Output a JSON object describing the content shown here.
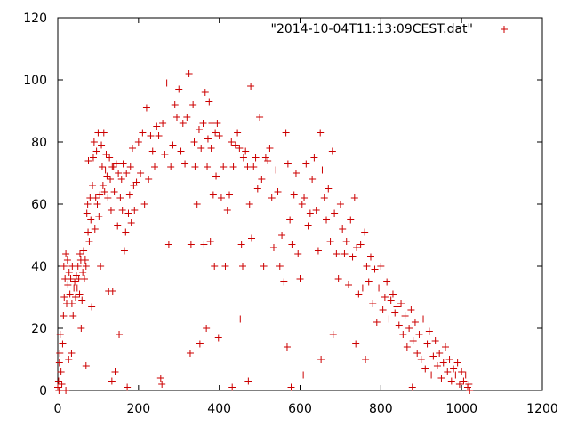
{
  "chart_data": {
    "type": "scatter",
    "title": "",
    "xlabel": "",
    "ylabel": "",
    "xlim": [
      0,
      1200
    ],
    "ylim": [
      0,
      120
    ],
    "xticks": [
      0,
      200,
      400,
      600,
      800,
      1000,
      1200
    ],
    "yticks": [
      0,
      20,
      40,
      60,
      80,
      100,
      120
    ],
    "grid": false,
    "legend": "top-right",
    "series": [
      {
        "name": "\"2014-10-04T11:13:09CEST.dat\"",
        "color": "#cc0000",
        "marker": "plus",
        "points": [
          [
            0,
            1
          ],
          [
            2,
            3
          ],
          [
            3,
            0
          ],
          [
            4,
            9
          ],
          [
            5,
            12
          ],
          [
            6,
            18
          ],
          [
            8,
            6
          ],
          [
            10,
            2
          ],
          [
            12,
            15
          ],
          [
            14,
            24
          ],
          [
            15,
            40
          ],
          [
            16,
            30
          ],
          [
            18,
            36
          ],
          [
            20,
            44
          ],
          [
            20,
            0
          ],
          [
            22,
            28
          ],
          [
            24,
            42
          ],
          [
            25,
            34
          ],
          [
            27,
            10
          ],
          [
            28,
            38
          ],
          [
            30,
            31
          ],
          [
            32,
            36
          ],
          [
            34,
            12
          ],
          [
            35,
            28
          ],
          [
            36,
            40
          ],
          [
            38,
            24
          ],
          [
            40,
            33
          ],
          [
            42,
            35
          ],
          [
            44,
            30
          ],
          [
            46,
            37
          ],
          [
            48,
            33
          ],
          [
            50,
            40
          ],
          [
            52,
            36
          ],
          [
            54,
            31
          ],
          [
            55,
            44
          ],
          [
            57,
            42
          ],
          [
            58,
            20
          ],
          [
            60,
            29
          ],
          [
            62,
            38
          ],
          [
            64,
            45
          ],
          [
            66,
            36
          ],
          [
            68,
            42
          ],
          [
            70,
            40
          ],
          [
            70,
            8
          ],
          [
            72,
            57
          ],
          [
            74,
            60
          ],
          [
            75,
            51
          ],
          [
            76,
            74
          ],
          [
            78,
            48
          ],
          [
            80,
            62
          ],
          [
            82,
            55
          ],
          [
            84,
            27
          ],
          [
            86,
            66
          ],
          [
            88,
            75
          ],
          [
            90,
            80
          ],
          [
            92,
            52
          ],
          [
            94,
            62
          ],
          [
            96,
            77
          ],
          [
            98,
            60
          ],
          [
            100,
            83
          ],
          [
            102,
            56
          ],
          [
            104,
            63
          ],
          [
            106,
            40
          ],
          [
            108,
            79
          ],
          [
            110,
            72
          ],
          [
            112,
            66
          ],
          [
            114,
            83
          ],
          [
            116,
            64
          ],
          [
            118,
            71
          ],
          [
            120,
            76
          ],
          [
            122,
            69
          ],
          [
            124,
            62
          ],
          [
            126,
            32
          ],
          [
            128,
            75
          ],
          [
            130,
            68
          ],
          [
            132,
            58
          ],
          [
            134,
            3
          ],
          [
            135,
            72
          ],
          [
            136,
            32
          ],
          [
            138,
            72
          ],
          [
            140,
            64
          ],
          [
            142,
            6
          ],
          [
            145,
            73
          ],
          [
            148,
            53
          ],
          [
            150,
            70
          ],
          [
            152,
            18
          ],
          [
            155,
            62
          ],
          [
            158,
            68
          ],
          [
            160,
            58
          ],
          [
            162,
            73
          ],
          [
            165,
            45
          ],
          [
            168,
            51
          ],
          [
            170,
            70
          ],
          [
            172,
            1
          ],
          [
            175,
            57
          ],
          [
            178,
            63
          ],
          [
            180,
            72
          ],
          [
            182,
            54
          ],
          [
            185,
            78
          ],
          [
            188,
            66
          ],
          [
            190,
            58
          ],
          [
            195,
            67
          ],
          [
            200,
            80
          ],
          [
            205,
            70
          ],
          [
            210,
            83
          ],
          [
            215,
            60
          ],
          [
            220,
            91
          ],
          [
            225,
            68
          ],
          [
            230,
            82
          ],
          [
            235,
            77
          ],
          [
            240,
            72
          ],
          [
            245,
            85
          ],
          [
            250,
            82
          ],
          [
            255,
            4
          ],
          [
            258,
            2
          ],
          [
            260,
            86
          ],
          [
            265,
            76
          ],
          [
            270,
            99
          ],
          [
            275,
            47
          ],
          [
            280,
            72
          ],
          [
            285,
            79
          ],
          [
            290,
            92
          ],
          [
            295,
            88
          ],
          [
            300,
            97
          ],
          [
            305,
            77
          ],
          [
            310,
            86
          ],
          [
            315,
            73
          ],
          [
            320,
            88
          ],
          [
            325,
            102
          ],
          [
            328,
            12
          ],
          [
            330,
            47
          ],
          [
            335,
            92
          ],
          [
            338,
            80
          ],
          [
            340,
            72
          ],
          [
            345,
            60
          ],
          [
            350,
            84
          ],
          [
            352,
            15
          ],
          [
            355,
            78
          ],
          [
            360,
            86
          ],
          [
            362,
            47
          ],
          [
            365,
            96
          ],
          [
            368,
            20
          ],
          [
            370,
            72
          ],
          [
            372,
            81
          ],
          [
            375,
            93
          ],
          [
            378,
            48
          ],
          [
            380,
            78
          ],
          [
            382,
            86
          ],
          [
            385,
            63
          ],
          [
            388,
            40
          ],
          [
            390,
            83
          ],
          [
            392,
            69
          ],
          [
            395,
            86
          ],
          [
            398,
            17
          ],
          [
            400,
            82
          ],
          [
            405,
            62
          ],
          [
            410,
            72
          ],
          [
            415,
            40
          ],
          [
            420,
            58
          ],
          [
            425,
            63
          ],
          [
            430,
            80
          ],
          [
            432,
            1
          ],
          [
            435,
            72
          ],
          [
            440,
            79
          ],
          [
            445,
            83
          ],
          [
            450,
            78
          ],
          [
            452,
            23
          ],
          [
            455,
            47
          ],
          [
            458,
            40
          ],
          [
            460,
            75
          ],
          [
            465,
            77
          ],
          [
            470,
            72
          ],
          [
            472,
            3
          ],
          [
            475,
            60
          ],
          [
            478,
            98
          ],
          [
            480,
            49
          ],
          [
            485,
            72
          ],
          [
            490,
            75
          ],
          [
            495,
            65
          ],
          [
            500,
            88
          ],
          [
            505,
            68
          ],
          [
            510,
            40
          ],
          [
            515,
            75
          ],
          [
            520,
            74
          ],
          [
            525,
            78
          ],
          [
            530,
            62
          ],
          [
            535,
            46
          ],
          [
            540,
            71
          ],
          [
            545,
            64
          ],
          [
            550,
            40
          ],
          [
            555,
            50
          ],
          [
            560,
            35
          ],
          [
            565,
            83
          ],
          [
            568,
            14
          ],
          [
            570,
            73
          ],
          [
            575,
            55
          ],
          [
            578,
            1
          ],
          [
            580,
            47
          ],
          [
            585,
            63
          ],
          [
            590,
            70
          ],
          [
            595,
            44
          ],
          [
            600,
            36
          ],
          [
            605,
            60
          ],
          [
            608,
            5
          ],
          [
            610,
            62
          ],
          [
            615,
            73
          ],
          [
            620,
            53
          ],
          [
            625,
            57
          ],
          [
            630,
            68
          ],
          [
            635,
            75
          ],
          [
            640,
            58
          ],
          [
            645,
            45
          ],
          [
            650,
            83
          ],
          [
            652,
            10
          ],
          [
            655,
            71
          ],
          [
            660,
            62
          ],
          [
            665,
            55
          ],
          [
            670,
            65
          ],
          [
            675,
            48
          ],
          [
            680,
            77
          ],
          [
            682,
            18
          ],
          [
            685,
            57
          ],
          [
            690,
            44
          ],
          [
            695,
            36
          ],
          [
            700,
            60
          ],
          [
            705,
            52
          ],
          [
            710,
            44
          ],
          [
            715,
            48
          ],
          [
            720,
            34
          ],
          [
            725,
            55
          ],
          [
            730,
            43
          ],
          [
            735,
            62
          ],
          [
            738,
            15
          ],
          [
            740,
            46
          ],
          [
            745,
            31
          ],
          [
            750,
            47
          ],
          [
            755,
            33
          ],
          [
            760,
            51
          ],
          [
            762,
            10
          ],
          [
            765,
            40
          ],
          [
            770,
            35
          ],
          [
            775,
            43
          ],
          [
            780,
            28
          ],
          [
            785,
            39
          ],
          [
            790,
            22
          ],
          [
            795,
            33
          ],
          [
            800,
            40
          ],
          [
            805,
            26
          ],
          [
            810,
            30
          ],
          [
            815,
            35
          ],
          [
            820,
            23
          ],
          [
            825,
            29
          ],
          [
            830,
            31
          ],
          [
            835,
            25
          ],
          [
            840,
            27
          ],
          [
            845,
            21
          ],
          [
            850,
            28
          ],
          [
            855,
            18
          ],
          [
            860,
            24
          ],
          [
            865,
            14
          ],
          [
            870,
            20
          ],
          [
            875,
            26
          ],
          [
            878,
            1
          ],
          [
            880,
            16
          ],
          [
            885,
            22
          ],
          [
            890,
            12
          ],
          [
            895,
            18
          ],
          [
            900,
            10
          ],
          [
            905,
            23
          ],
          [
            910,
            7
          ],
          [
            915,
            15
          ],
          [
            920,
            19
          ],
          [
            925,
            5
          ],
          [
            930,
            11
          ],
          [
            935,
            16
          ],
          [
            940,
            8
          ],
          [
            945,
            12
          ],
          [
            950,
            4
          ],
          [
            955,
            9
          ],
          [
            960,
            14
          ],
          [
            965,
            6
          ],
          [
            970,
            10
          ],
          [
            975,
            3
          ],
          [
            980,
            7
          ],
          [
            985,
            5
          ],
          [
            990,
            9
          ],
          [
            995,
            2
          ],
          [
            1000,
            6
          ],
          [
            1005,
            3
          ],
          [
            1010,
            5
          ],
          [
            1015,
            1
          ],
          [
            1018,
            2
          ],
          [
            1020,
            0
          ]
        ]
      }
    ]
  }
}
